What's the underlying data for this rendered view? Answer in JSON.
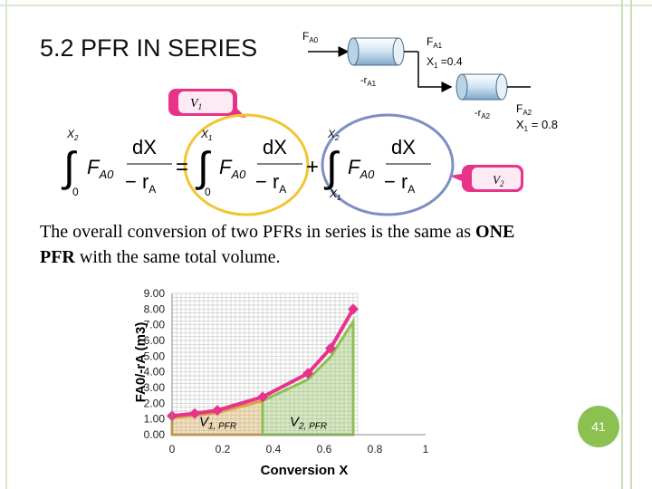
{
  "slide": {
    "title": "5.2 PFR IN SERIES",
    "page_number": "41",
    "body_line1_pre": "The overall conversion of two PFRs in series is the same as ",
    "body_line1_bold": "ONE",
    "body_line2_bold": "PFR",
    "body_line2_post": " with the same total volume."
  },
  "reactor_diagram": {
    "feed_label": "F",
    "feed_sub": "A0",
    "out1_label": "F",
    "out1_sub": "A1",
    "out1_conv": "X",
    "out1_conv_sub": "1",
    "out1_conv_val": " =0.4",
    "rate1_label": "-r",
    "rate1_sub": "A1",
    "out2_label": "F",
    "out2_sub": "A2",
    "out2_conv": "X",
    "out2_conv_sub": "1",
    "out2_conv_val": " = 0.8",
    "rate2_label": "-r",
    "rate2_sub": "A2"
  },
  "callouts": {
    "v1": "V",
    "v1_sub": "1",
    "v2": "V",
    "v2_sub": "2"
  },
  "equation": {
    "int1_upper": "X",
    "int1_upper_sub": "2",
    "int1_lower": "0",
    "int2_upper": "X",
    "int2_upper_sub": "1",
    "int2_lower": "0",
    "int3_upper": "X",
    "int3_upper_sub": "2",
    "int3_lower": "X",
    "int3_lower_sub": "1",
    "integrand_F": "F",
    "integrand_sub": "A0",
    "numerator": "dX",
    "denominator": "− r",
    "denominator_sub": "A",
    "equals": "=",
    "plus": "+"
  },
  "chart_data": {
    "type": "line",
    "xlabel": "Conversion  X",
    "ylabel": "FA0/-rA (m3)",
    "xlim": [
      0,
      1
    ],
    "ylim": [
      0,
      9
    ],
    "x_ticks": [
      "0",
      "0.2",
      "0.4",
      "0.6",
      "0.8",
      "1"
    ],
    "y_ticks": [
      "0.00",
      "1.00",
      "2.00",
      "3.00",
      "4.00",
      "5.00",
      "6.00",
      "7.00",
      "8.00",
      "9.00"
    ],
    "series": [
      {
        "x": [
          0,
          0.1,
          0.2,
          0.4,
          0.6,
          0.7,
          0.8
        ],
        "y": [
          1.2,
          1.35,
          1.55,
          2.4,
          3.9,
          5.5,
          8.0
        ],
        "color": "#e8338a"
      }
    ],
    "regions": [
      {
        "label": "V",
        "label_sub": "1, PFR",
        "x_from": 0,
        "x_to": 0.4,
        "color": "#d9a441"
      },
      {
        "label": "V",
        "label_sub": "2, PFR",
        "x_from": 0.4,
        "x_to": 0.8,
        "color": "#8cc152"
      }
    ],
    "grid": true
  }
}
